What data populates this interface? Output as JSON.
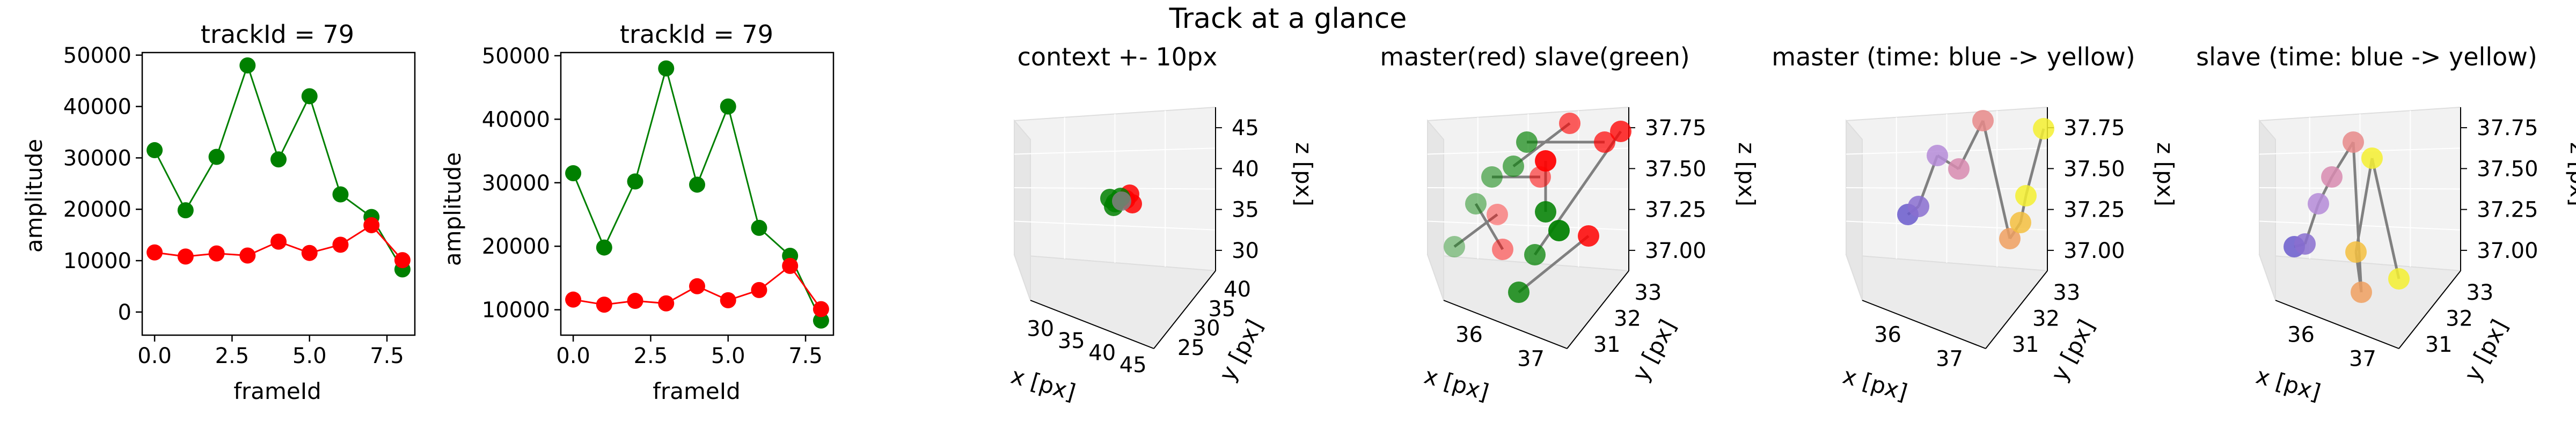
{
  "figure": {
    "suptitle": "Track at a glance"
  },
  "colors": {
    "master": "#ff0000",
    "slave": "#008000",
    "connector": "#808080"
  },
  "chart_data": [
    {
      "type": "line",
      "title": "trackId = 79",
      "xlabel": "frameId",
      "ylabel": "amplitude",
      "x": [
        0,
        1,
        2,
        3,
        4,
        5,
        6,
        7,
        8
      ],
      "xticks": [
        "0.0",
        "2.5",
        "5.0",
        "7.5"
      ],
      "xtick_values": [
        0,
        2.5,
        5,
        7.5
      ],
      "yticks": [
        "0",
        "10000",
        "20000",
        "30000",
        "40000",
        "50000"
      ],
      "ytick_values": [
        0,
        10000,
        20000,
        30000,
        40000,
        50000
      ],
      "xlim": [
        -0.4,
        8.4
      ],
      "ylim": [
        -4500,
        50500
      ],
      "series": [
        {
          "color": "#008000",
          "values": [
            31500,
            19800,
            30200,
            48000,
            29700,
            42000,
            22900,
            18500,
            8300
          ]
        },
        {
          "color": "#ff0000",
          "values": [
            11600,
            10800,
            11400,
            11000,
            13700,
            11500,
            13100,
            16900,
            10100
          ]
        }
      ]
    },
    {
      "type": "line",
      "title": "trackId = 79",
      "xlabel": "frameId",
      "ylabel": "amplitude",
      "x": [
        0,
        1,
        2,
        3,
        4,
        5,
        6,
        7,
        8
      ],
      "xticks": [
        "0.0",
        "2.5",
        "5.0",
        "7.5"
      ],
      "xtick_values": [
        0,
        2.5,
        5,
        7.5
      ],
      "yticks": [
        "10000",
        "20000",
        "30000",
        "40000",
        "50000"
      ],
      "ytick_values": [
        10000,
        20000,
        30000,
        40000,
        50000
      ],
      "xlim": [
        -0.4,
        8.4
      ],
      "ylim": [
        6000,
        50500
      ],
      "series": [
        {
          "color": "#008000",
          "values": [
            31500,
            19800,
            30200,
            48000,
            29700,
            42000,
            22900,
            18500,
            8300
          ]
        },
        {
          "color": "#ff0000",
          "values": [
            11600,
            10800,
            11400,
            11000,
            13700,
            11500,
            13100,
            16900,
            10100
          ]
        }
      ]
    },
    {
      "type": "scatter",
      "title": "context +- 10px",
      "xlabel": "x [px]",
      "ylabel": "y [px]",
      "zlabel": "z [px]",
      "xticks": [
        "30",
        "35",
        "40",
        "45"
      ],
      "yticks": [
        "25",
        "30",
        "35",
        "40"
      ],
      "zticks": [
        "30",
        "35",
        "40",
        "45"
      ],
      "note": "all track points cluster at the center (x≈36, y≈32, z≈37); master red, slave green"
    },
    {
      "type": "scatter",
      "title": "master(red) slave(green)",
      "xlabel": "x [px]",
      "ylabel": "y [px]",
      "zlabel": "z [px]",
      "xticks": [
        "36",
        "37"
      ],
      "yticks": [
        "31",
        "32",
        "33"
      ],
      "zticks": [
        "37.00",
        "37.25",
        "37.50",
        "37.75"
      ],
      "series": [
        {
          "name": "master",
          "color": "#ff0000"
        },
        {
          "name": "slave",
          "color": "#008000"
        }
      ]
    },
    {
      "type": "scatter",
      "title": "master (time: blue -> yellow)",
      "xlabel": "x [px]",
      "ylabel": "y [px]",
      "zlabel": "z [px]",
      "xticks": [
        "36",
        "37"
      ],
      "yticks": [
        "31",
        "32",
        "33"
      ],
      "zticks": [
        "37.00",
        "37.25",
        "37.50",
        "37.75"
      ]
    },
    {
      "type": "scatter",
      "title": "slave (time: blue -> yellow)",
      "xlabel": "x [px]",
      "ylabel": "y [px]",
      "zlabel": "z [px]",
      "xticks": [
        "36",
        "37"
      ],
      "yticks": [
        "31",
        "32",
        "33"
      ],
      "zticks": [
        "37.00",
        "37.25",
        "37.50",
        "37.75"
      ]
    }
  ]
}
